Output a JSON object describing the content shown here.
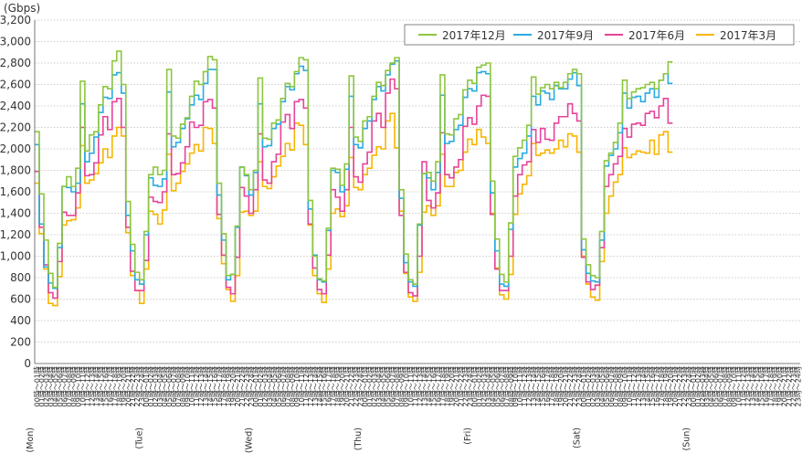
{
  "chart_data": {
    "type": "line",
    "ylabel": "(Gbps)",
    "ylim": [
      0,
      3200
    ],
    "y_ticks": [
      "0",
      "200",
      "400",
      "600",
      "800",
      "1,000",
      "1,200",
      "1,400",
      "1,600",
      "1,800",
      "2,000",
      "2,200",
      "2,400",
      "2,600",
      "2,800",
      "3,000",
      "3,200"
    ],
    "grid": "horizontal dotted",
    "legend_position": "top-right",
    "hour_labels": [
      "00時～01時",
      "01時～02時",
      "02時～03時",
      "03時～04時",
      "04時～05時",
      "05時～06時",
      "06時～07時",
      "07時～08時",
      "08時～09時",
      "09時～10時",
      "10時～11時",
      "11時～12時",
      "12時～13時",
      "13時～14時",
      "14時～15時",
      "15時～16時",
      "16時～17時",
      "17時～18時",
      "18時～19時",
      "19時～20時",
      "20時～21時",
      "21時～22時",
      "22時～23時",
      "23時～24時"
    ],
    "days": [
      "(Mon)",
      "(Tue)",
      "(Wed)",
      "(Thu)",
      "(Fri)",
      "(Sat)",
      "(Sun)"
    ],
    "series": [
      {
        "name": "2017年12月",
        "color": "#8dc63f",
        "values": [
          2160,
          1580,
          1150,
          840,
          710,
          1120,
          1650,
          1740,
          1650,
          1820,
          2630,
          1980,
          2130,
          2160,
          2410,
          2580,
          2560,
          2820,
          2910,
          2600,
          1510,
          1110,
          850,
          780,
          1230,
          1760,
          1830,
          1760,
          1800,
          2740,
          2120,
          2100,
          2230,
          2290,
          2490,
          2630,
          2600,
          2720,
          2860,
          2830,
          1680,
          1210,
          820,
          830,
          1280,
          1830,
          1760,
          1620,
          1800,
          2660,
          2100,
          2090,
          2240,
          2270,
          2470,
          2610,
          2580,
          2720,
          2850,
          2830,
          1520,
          1000,
          790,
          770,
          1260,
          1820,
          1810,
          1660,
          1860,
          2680,
          2110,
          2070,
          2260,
          2300,
          2490,
          2620,
          2590,
          2730,
          2800,
          2850,
          1620,
          1020,
          780,
          740,
          1300,
          1770,
          1780,
          1700,
          1880,
          2690,
          2140,
          2130,
          2280,
          2320,
          2550,
          2640,
          2610,
          2760,
          2780,
          2800,
          1700,
          1160,
          830,
          760,
          1310,
          1930,
          2010,
          2080,
          2220,
          2670,
          2510,
          2570,
          2600,
          2560,
          2620,
          2570,
          2620,
          2700,
          2740,
          2700,
          1160,
          920,
          820,
          800,
          1230,
          1890,
          1960,
          2060,
          2240,
          2640,
          2470,
          2530,
          2560,
          2570,
          2600,
          2620,
          2560,
          2640,
          2700,
          2810
        ]
      },
      {
        "name": "2017年9月",
        "color": "#29abe2",
        "values": [
          2040,
          1300,
          900,
          750,
          700,
          1080,
          1650,
          1640,
          1600,
          1680,
          2420,
          1880,
          1960,
          2110,
          2340,
          2480,
          2470,
          2690,
          2710,
          2520,
          1380,
          1050,
          780,
          740,
          1200,
          1730,
          1660,
          1650,
          1720,
          2530,
          2020,
          2060,
          2190,
          2280,
          2410,
          2500,
          2460,
          2610,
          2740,
          2740,
          1570,
          1150,
          780,
          830,
          1270,
          1830,
          1750,
          1570,
          1780,
          2420,
          2020,
          2030,
          2190,
          2230,
          2440,
          2580,
          2550,
          2700,
          2770,
          2730,
          1440,
          1010,
          780,
          760,
          1240,
          1800,
          1780,
          1600,
          1810,
          2490,
          2040,
          2010,
          2190,
          2260,
          2460,
          2580,
          2540,
          2690,
          2790,
          2820,
          1540,
          940,
          760,
          720,
          1290,
          1770,
          1730,
          1620,
          1780,
          2500,
          2050,
          2070,
          2180,
          2220,
          2480,
          2560,
          2540,
          2710,
          2720,
          2700,
          1590,
          1050,
          740,
          720,
          1250,
          1830,
          1910,
          1960,
          2120,
          2490,
          2410,
          2540,
          2520,
          2460,
          2590,
          2560,
          2560,
          2650,
          2710,
          2590,
          1060,
          840,
          770,
          760,
          1150,
          1840,
          1940,
          2000,
          2150,
          2520,
          2380,
          2480,
          2490,
          2440,
          2520,
          2560,
          2480,
          2640,
          2700,
          2610
        ]
      },
      {
        "name": "2017年6月",
        "color": "#e6449a",
        "values": [
          1790,
          1270,
          920,
          660,
          610,
          950,
          1410,
          1380,
          1380,
          1590,
          2200,
          1750,
          1760,
          1870,
          2130,
          2300,
          2180,
          2440,
          2470,
          2200,
          1270,
          860,
          680,
          680,
          960,
          1550,
          1510,
          1500,
          1600,
          2140,
          1760,
          1770,
          1870,
          2020,
          2250,
          2200,
          2220,
          2440,
          2460,
          2380,
          1390,
          1010,
          710,
          650,
          990,
          1640,
          1560,
          1400,
          1620,
          2140,
          1710,
          1680,
          1880,
          1950,
          2250,
          2320,
          2190,
          2440,
          2460,
          2380,
          1300,
          890,
          690,
          650,
          1010,
          1620,
          1550,
          1420,
          1620,
          2200,
          1740,
          1690,
          1860,
          1970,
          2260,
          2330,
          2200,
          2520,
          2650,
          2560,
          1380,
          850,
          660,
          630,
          1000,
          1880,
          1520,
          1450,
          1590,
          2150,
          1760,
          1730,
          1830,
          1900,
          2210,
          2290,
          2230,
          2400,
          2500,
          2490,
          1390,
          880,
          680,
          680,
          1000,
          1560,
          1760,
          1850,
          1880,
          2180,
          2060,
          2190,
          2090,
          2080,
          2240,
          2300,
          2300,
          2420,
          2330,
          2260,
          990,
          760,
          690,
          730,
          1080,
          1650,
          1760,
          1860,
          1930,
          2190,
          2110,
          2230,
          2240,
          2220,
          2330,
          2350,
          2290,
          2400,
          2470,
          2240
        ]
      },
      {
        "name": "2017年3月",
        "color": "#f7b500",
        "values": [
          1680,
          1210,
          880,
          560,
          540,
          810,
          1290,
          1330,
          1340,
          1450,
          2030,
          1680,
          1710,
          1770,
          1870,
          2000,
          1920,
          2120,
          2200,
          2120,
          1220,
          820,
          680,
          560,
          880,
          1420,
          1390,
          1300,
          1430,
          1950,
          1610,
          1680,
          1790,
          1860,
          1960,
          2040,
          1980,
          2200,
          2190,
          2050,
          1350,
          930,
          690,
          580,
          820,
          1410,
          1420,
          1380,
          1420,
          1880,
          1650,
          1630,
          1740,
          1840,
          1930,
          2050,
          1990,
          2240,
          2220,
          2040,
          1290,
          820,
          650,
          570,
          880,
          1400,
          1440,
          1370,
          1470,
          1920,
          1640,
          1620,
          1760,
          1820,
          1940,
          2020,
          2000,
          2260,
          2330,
          2010,
          1420,
          840,
          620,
          580,
          850,
          1410,
          1470,
          1380,
          1470,
          1950,
          1650,
          1650,
          1780,
          1800,
          1970,
          2090,
          2040,
          2180,
          2110,
          2050,
          1400,
          890,
          640,
          600,
          830,
          1390,
          1580,
          1670,
          1750,
          2050,
          1940,
          1960,
          1990,
          1960,
          2000,
          2080,
          2020,
          2140,
          2120,
          1970,
          1000,
          740,
          620,
          590,
          950,
          1400,
          1560,
          1690,
          1760,
          2010,
          1920,
          1950,
          1980,
          1970,
          1960,
          2080,
          1950,
          2130,
          2160,
          1970
        ]
      }
    ]
  }
}
